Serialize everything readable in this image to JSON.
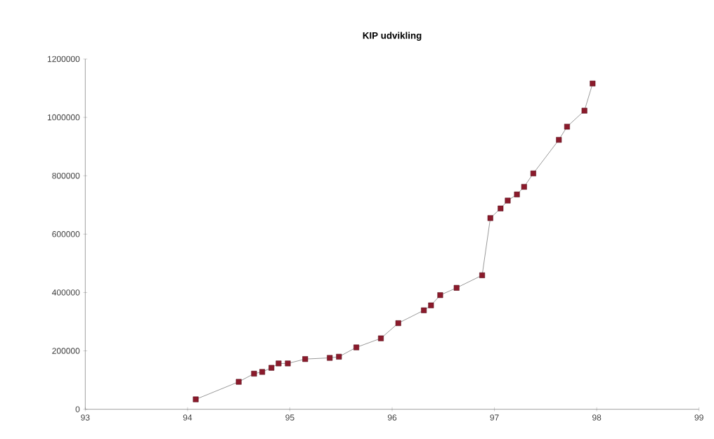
{
  "chart_data": {
    "type": "line",
    "title": "KIP udvikling",
    "x": [
      94.08,
      94.5,
      94.65,
      94.73,
      94.82,
      94.89,
      94.98,
      95.15,
      95.39,
      95.48,
      95.65,
      95.89,
      96.06,
      96.31,
      96.38,
      96.47,
      96.63,
      96.88,
      96.96,
      97.06,
      97.13,
      97.22,
      97.29,
      97.38,
      97.63,
      97.71,
      97.88,
      97.96
    ],
    "values": [
      34000,
      94000,
      122000,
      128000,
      142000,
      157000,
      157000,
      172000,
      176000,
      180000,
      212000,
      243000,
      295000,
      339000,
      356000,
      391000,
      416000,
      459000,
      655000,
      688000,
      715000,
      736000,
      762000,
      808000,
      923000,
      968000,
      1023000,
      1116000
    ],
    "color": "#8b1a2b",
    "marker": "square",
    "line_style": "solid",
    "grid": false,
    "xlim": [
      93,
      99
    ],
    "xticks": [
      93,
      94,
      95,
      96,
      97,
      98,
      99
    ],
    "ylim": [
      0,
      1200000
    ],
    "yticks": [
      0,
      200000,
      400000,
      600000,
      800000,
      1000000,
      1200000
    ]
  }
}
